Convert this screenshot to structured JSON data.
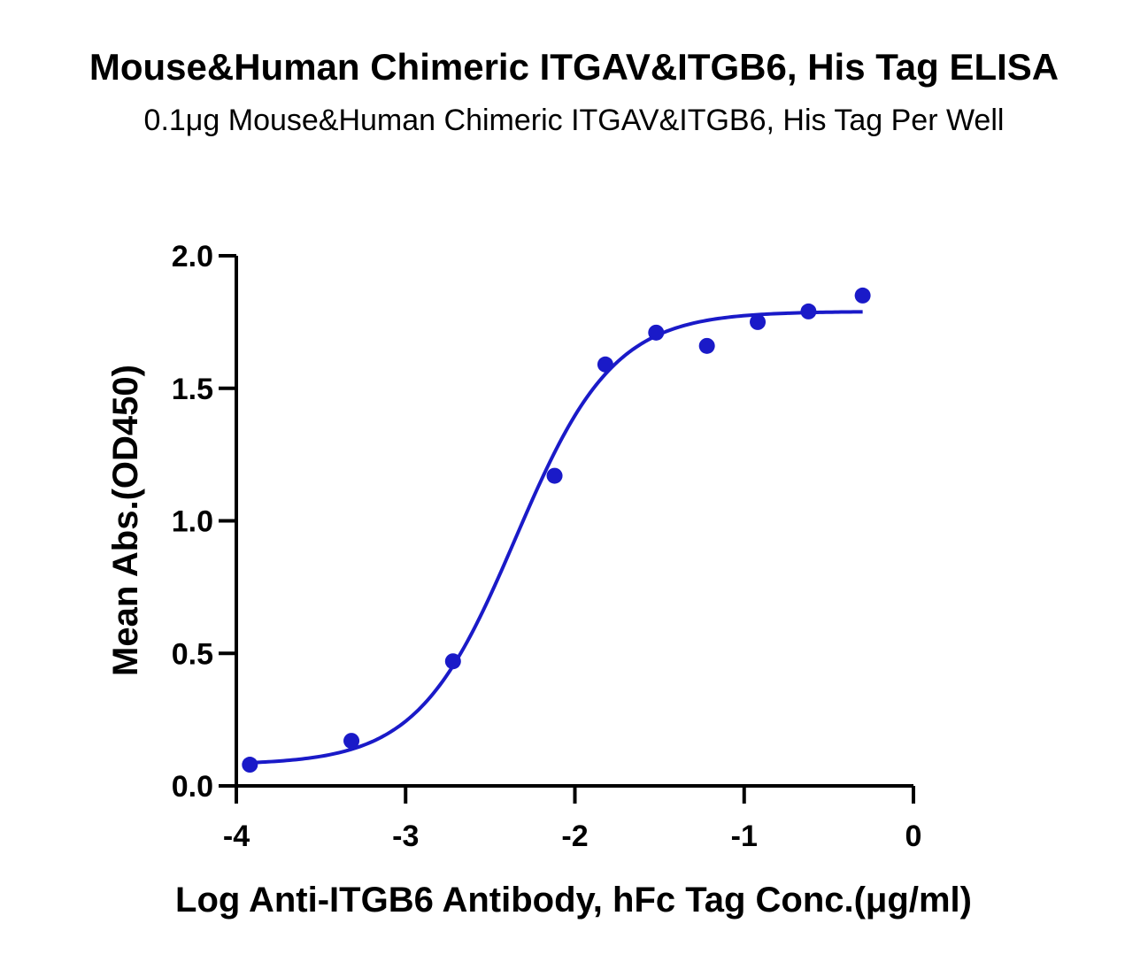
{
  "chart_data": {
    "type": "scatter",
    "title": "Mouse&Human Chimeric ITGAV&ITGB6, His Tag ELISA",
    "subtitle": "0.1μg Mouse&Human Chimeric ITGAV&ITGB6, His Tag Per Well",
    "xlabel": "Log Anti-ITGB6 Antibody, hFc Tag Conc.(μg/ml)",
    "ylabel": "Mean Abs.(OD450)",
    "xlim": [
      -4,
      0
    ],
    "ylim": [
      0,
      2.0
    ],
    "x_ticks": [
      "-4",
      "-3",
      "-2",
      "-1",
      "0"
    ],
    "y_ticks": [
      "0.0",
      "0.5",
      "1.0",
      "1.5",
      "2.0"
    ],
    "grid": false,
    "colors": {
      "series": "#1a1ac8",
      "axes": "#000000"
    },
    "series": [
      {
        "x": [
          -3.92,
          -3.32,
          -2.72,
          -2.12,
          -1.82,
          -1.52,
          -1.22,
          -0.92,
          -0.62,
          -0.3
        ],
        "y": [
          0.08,
          0.17,
          0.47,
          1.17,
          1.59,
          1.71,
          1.66,
          1.75,
          1.79,
          1.85
        ]
      }
    ],
    "fit_curve": {
      "type": "4PL",
      "bottom": 0.08,
      "top": 1.79,
      "log_ec50": -2.35,
      "hill_slope": 1.5,
      "x_range": [
        -3.92,
        -0.3
      ]
    }
  }
}
